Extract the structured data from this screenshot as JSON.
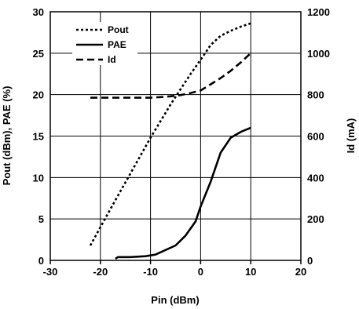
{
  "chart_data": {
    "type": "line",
    "title": "",
    "xlabel": "Pin (dBm)",
    "ylabel": "Pout (dBm), PAE (%)",
    "y2label": "Id (mA)",
    "xlim": [
      -30,
      20
    ],
    "ylim": [
      0,
      30
    ],
    "y2lim": [
      0,
      1200
    ],
    "x_ticks": [
      "-30",
      "-20",
      "-10",
      "0",
      "10",
      "20"
    ],
    "y_ticks": [
      "0",
      "5",
      "10",
      "15",
      "20",
      "25",
      "30"
    ],
    "y2_ticks": [
      "0",
      "200",
      "400",
      "600",
      "800",
      "1000",
      "1200"
    ],
    "grid": true,
    "legend_position": "top-left",
    "series": [
      {
        "name": "Pout",
        "axis": "left",
        "style": "dotted",
        "x": [
          -22,
          -18,
          -14,
          -10,
          -6,
          -2,
          0,
          2,
          4,
          6,
          8,
          10
        ],
        "y": [
          1.8,
          6.2,
          10.5,
          14.8,
          18.8,
          22.5,
          24.2,
          26.0,
          27.1,
          27.7,
          28.2,
          28.6
        ]
      },
      {
        "name": "PAE",
        "axis": "left",
        "style": "solid",
        "x": [
          -17,
          -16.5,
          -14,
          -11,
          -9,
          -5,
          -3,
          -1,
          0,
          2,
          4,
          6,
          8,
          10
        ],
        "y": [
          0.2,
          0.4,
          0.4,
          0.5,
          0.7,
          1.8,
          3.0,
          4.7,
          6.5,
          9.5,
          13.0,
          14.8,
          15.5,
          16.0
        ]
      },
      {
        "name": "Id",
        "axis": "right",
        "style": "dashed",
        "x": [
          -22,
          -16,
          -10,
          -8,
          -6,
          -4,
          -2,
          0,
          2,
          4,
          6,
          8,
          10
        ],
        "y": [
          785,
          785,
          785,
          788,
          792,
          798,
          808,
          820,
          850,
          880,
          915,
          955,
          1000
        ]
      }
    ]
  }
}
